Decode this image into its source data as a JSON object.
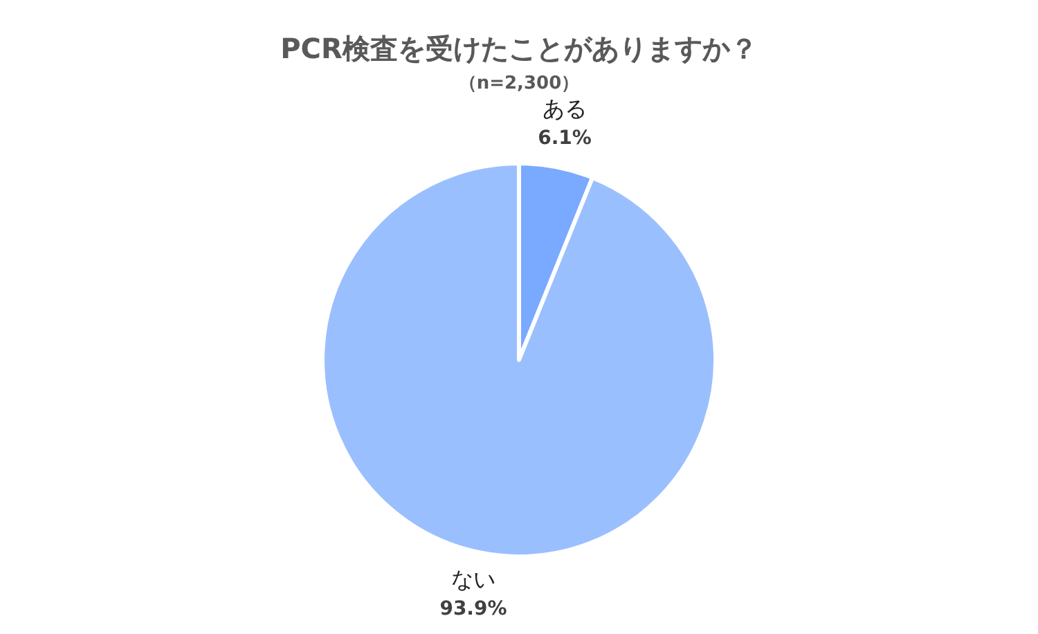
{
  "chart_data": {
    "type": "pie",
    "title": "PCR検査を受けたことがありますか？",
    "subtitle": "（n=2,300）",
    "categories": [
      "ある",
      "ない"
    ],
    "values": [
      6.1,
      93.9
    ],
    "colors": [
      "#79aaff",
      "#9abfff"
    ],
    "value_labels": [
      "6.1%",
      "93.9%"
    ]
  }
}
